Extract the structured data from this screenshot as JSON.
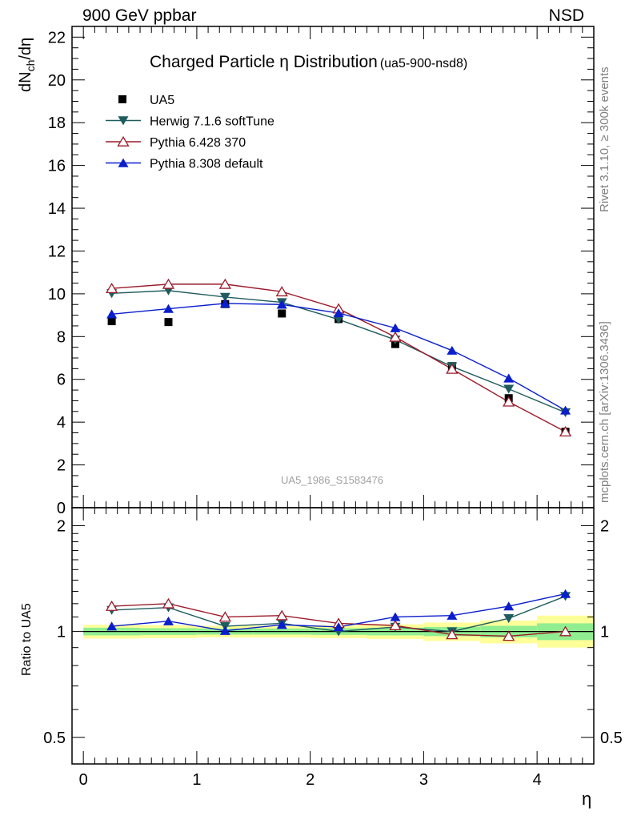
{
  "header": {
    "left": "900 GeV ppbar",
    "right": "NSD"
  },
  "side_labels": {
    "rivet": "Rivet 3.1.10, ≥ 300k events",
    "mcplots": "mcplots.cern.ch [arXiv:1306.3436]"
  },
  "chart_data": [
    {
      "type": "line",
      "title": "Charged Particle η Distribution",
      "subtitle": "(ua5-900-nsd8)",
      "ylabel_main": "dN",
      "ylabel_sub": "ch",
      "ylabel_tail": "/dη",
      "xlabel": "",
      "watermark": "UA5_1986_S1583476",
      "xlim": [
        -0.1,
        4.5
      ],
      "ylim": [
        0,
        22.5
      ],
      "yticks": [
        0,
        2,
        4,
        6,
        8,
        10,
        12,
        14,
        16,
        18,
        20,
        22
      ],
      "legend_position": "top-left",
      "x": [
        0.25,
        0.75,
        1.25,
        1.75,
        2.25,
        2.75,
        3.25,
        3.75,
        4.25
      ],
      "series": [
        {
          "name": "UA5",
          "color": "#000000",
          "marker": "square",
          "line": false,
          "values": [
            8.72,
            8.68,
            9.52,
            9.08,
            8.82,
            7.65,
            6.62,
            5.12,
            3.55
          ]
        },
        {
          "name": "Herwig 7.1.6 softTune",
          "color": "#1f5c5e",
          "marker": "triangle-down",
          "line": true,
          "values": [
            10.02,
            10.15,
            9.85,
            9.6,
            8.8,
            7.85,
            6.6,
            5.55,
            4.45
          ]
        },
        {
          "name": "Pythia 6.428 370",
          "color": "#9b1b2a",
          "marker": "triangle-open",
          "line": true,
          "values": [
            10.25,
            10.45,
            10.45,
            10.1,
            9.3,
            7.98,
            6.48,
            4.95,
            3.55
          ]
        },
        {
          "name": "Pythia 8.308 default",
          "color": "#0a1ecc",
          "marker": "triangle-up",
          "line": true,
          "values": [
            9.05,
            9.3,
            9.55,
            9.5,
            9.1,
            8.4,
            7.35,
            6.05,
            4.55
          ]
        }
      ]
    },
    {
      "type": "line",
      "ylabel": "Ratio to UA5",
      "xlabel": "η",
      "xlim": [
        -0.1,
        4.5
      ],
      "ylim": [
        0.42,
        2.25
      ],
      "yscale": "log",
      "yticks": [
        0.5,
        1,
        2
      ],
      "xticks": [
        0,
        1,
        2,
        3,
        4
      ],
      "reference_line": 1,
      "x": [
        0.25,
        0.75,
        1.25,
        1.75,
        2.25,
        2.75,
        3.25,
        3.75,
        4.25
      ],
      "bins": [
        [
          0,
          0.5
        ],
        [
          0.5,
          1
        ],
        [
          1,
          1.5
        ],
        [
          1.5,
          2
        ],
        [
          2,
          2.5
        ],
        [
          2.5,
          3
        ],
        [
          3,
          3.5
        ],
        [
          3.5,
          4
        ],
        [
          4,
          4.5
        ]
      ],
      "band_inner": [
        [
          0.975,
          1.025
        ],
        [
          0.978,
          1.022
        ],
        [
          0.98,
          1.02
        ],
        [
          0.98,
          1.02
        ],
        [
          0.978,
          1.022
        ],
        [
          0.975,
          1.025
        ],
        [
          0.97,
          1.03
        ],
        [
          0.962,
          1.038
        ],
        [
          0.945,
          1.055
        ]
      ],
      "band_outer": [
        [
          0.955,
          1.045
        ],
        [
          0.958,
          1.042
        ],
        [
          0.962,
          1.038
        ],
        [
          0.962,
          1.038
        ],
        [
          0.958,
          1.042
        ],
        [
          0.952,
          1.048
        ],
        [
          0.94,
          1.06
        ],
        [
          0.925,
          1.075
        ],
        [
          0.9,
          1.11
        ]
      ],
      "band_inner_color": "#90ee90",
      "band_outer_color": "#ffff99",
      "series": [
        {
          "name": "Herwig 7.1.6 softTune",
          "color": "#1f5c5e",
          "marker": "triangle-down",
          "values": [
            1.15,
            1.17,
            1.035,
            1.055,
            1.0,
            1.03,
            1.0,
            1.09,
            1.26
          ]
        },
        {
          "name": "Pythia 6.428 370",
          "color": "#9b1b2a",
          "marker": "triangle-open",
          "values": [
            1.18,
            1.2,
            1.1,
            1.11,
            1.055,
            1.04,
            0.98,
            0.97,
            1.0
          ]
        },
        {
          "name": "Pythia 8.308 default",
          "color": "#0a1ecc",
          "marker": "triangle-up",
          "values": [
            1.035,
            1.07,
            1.005,
            1.045,
            1.03,
            1.1,
            1.11,
            1.18,
            1.28
          ]
        }
      ]
    }
  ]
}
